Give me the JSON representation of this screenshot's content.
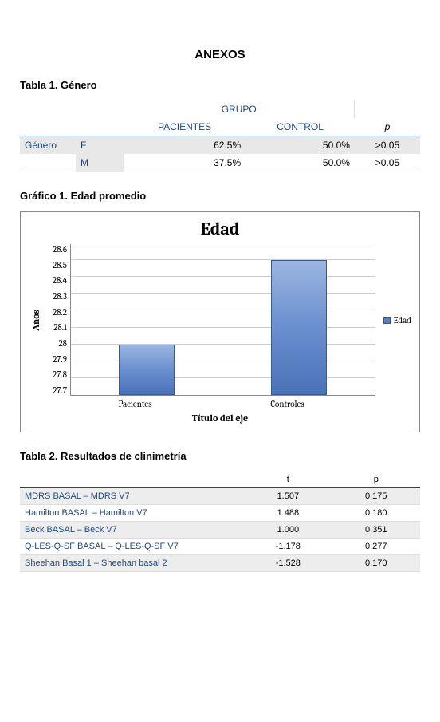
{
  "page_title": "ANEXOS",
  "tabla1": {
    "title": "Tabla 1. Género",
    "group_header": "GRUPO",
    "columns": {
      "pacientes": "PACIENTES",
      "control": "CONTROL",
      "p": "p"
    },
    "row_label": "Género",
    "rows": [
      {
        "cat": "F",
        "pac": "62.5%",
        "ctrl": "50.0%",
        "p": ">0.05"
      },
      {
        "cat": "M",
        "pac": "37.5%",
        "ctrl": "50.0%",
        "p": ">0.05"
      }
    ],
    "label_color": "#1f497d"
  },
  "grafico1": {
    "title": "Gráfico 1. Edad promedio",
    "chart_title": "Edad",
    "type": "bar",
    "y_label": "Años",
    "x_label": "Título del eje",
    "ylim": [
      27.7,
      28.6
    ],
    "ytick_step": 0.1,
    "y_ticks": [
      "28.6",
      "28.5",
      "28.4",
      "28.3",
      "28.2",
      "28.1",
      "28",
      "27.9",
      "27.8",
      "27.7"
    ],
    "categories": [
      "Pacientes",
      "Controles"
    ],
    "values": [
      28.0,
      28.5
    ],
    "bar_color": "#5a7fc0",
    "bar_border": "#3b5a8a",
    "grid_color": "#cccccc",
    "background_color": "#ffffff",
    "legend_label": "Edad",
    "font_family": "Cambria",
    "title_fontsize": 22,
    "axis_fontsize": 11
  },
  "tabla2": {
    "title": "Tabla 2. Resultados de clinimetría",
    "columns": {
      "t": "t",
      "p": "p"
    },
    "rows": [
      {
        "label": "MDRS BASAL – MDRS V7",
        "t": "1.507",
        "p": "0.175"
      },
      {
        "label": "Hamilton BASAL – Hamilton V7",
        "t": "1.488",
        "p": "0.180"
      },
      {
        "label": "Beck BASAL – Beck V7",
        "t": "1.000",
        "p": "0.351"
      },
      {
        "label": "Q-LES-Q-SF BASAL – Q-LES-Q-SF V7",
        "t": "-1.178",
        "p": "0.277"
      },
      {
        "label": "Sheehan Basal 1 – Sheehan basal 2",
        "t": "-1.528",
        "p": "0.170"
      }
    ],
    "label_color": "#1f497d"
  }
}
